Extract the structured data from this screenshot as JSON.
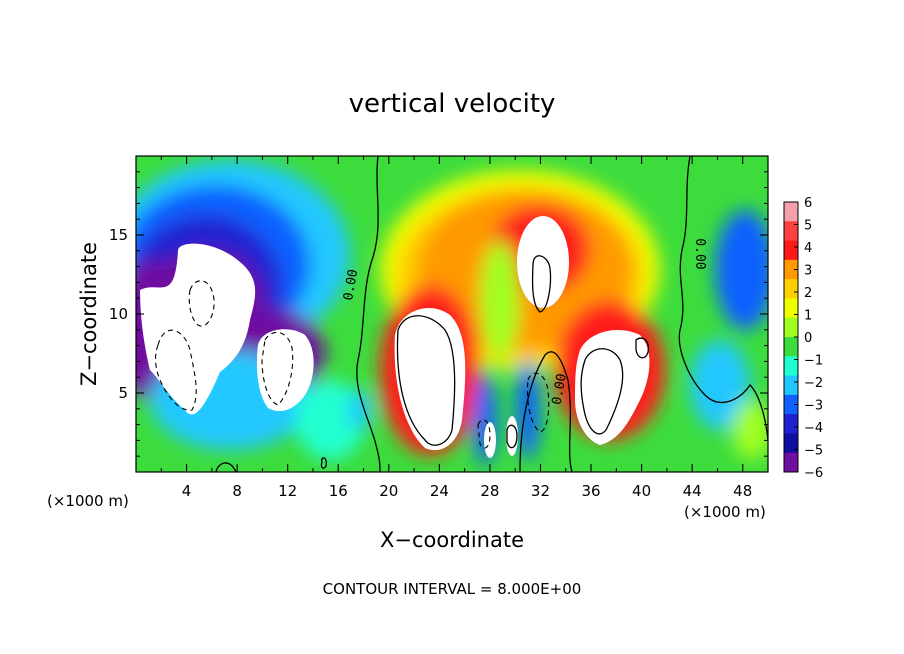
{
  "chart_data": {
    "type": "heatmap",
    "title": "vertical velocity",
    "xlabel": "X−coordinate",
    "ylabel": "Z−coordinate",
    "x_unit": "(×1000 m)",
    "xlim": [
      0,
      50
    ],
    "ylim": [
      0,
      20
    ],
    "xticks": [
      4,
      8,
      12,
      16,
      20,
      24,
      28,
      32,
      36,
      40,
      44,
      48
    ],
    "yticks": [
      5,
      10,
      15
    ],
    "colorbar": {
      "ticks": [
        6,
        5,
        4,
        3,
        2,
        1,
        0,
        -1,
        -2,
        -3,
        -4,
        -5,
        -6
      ],
      "tick_labels": [
        "6",
        "5",
        "4",
        "3",
        "2",
        "1",
        "0",
        "−1",
        "−2",
        "−3",
        "−4",
        "−5",
        "−6"
      ],
      "range": [
        -6,
        6
      ],
      "colors": [
        "#f4a0a8",
        "#ff4040",
        "#ff1a1a",
        "#ff9a00",
        "#ffd000",
        "#f0ff00",
        "#a0ff20",
        "#3ddc3d",
        "#20ffd0",
        "#20c8ff",
        "#1060ff",
        "#2020d0",
        "#1010a0",
        "#7010a0"
      ]
    },
    "contour_labels": [
      {
        "text": "0.00",
        "x": 17.3,
        "z": 11.8,
        "rotation": -80
      },
      {
        "text": "0.00",
        "x": 44.3,
        "z": 13.8,
        "rotation": 90
      },
      {
        "text": "0.00",
        "x": 33.8,
        "z": 5.2,
        "rotation": -80
      }
    ],
    "features": [
      {
        "kind": "updraft-core",
        "x": 23.5,
        "z": 7.5,
        "w": 5.8
      },
      {
        "kind": "updraft-core",
        "x": 32.2,
        "z": 13.3,
        "w": 7.5
      },
      {
        "kind": "updraft-core",
        "x": 37.5,
        "z": 6.5,
        "w": 6.5
      },
      {
        "kind": "downdraft-core",
        "x": 4.5,
        "z": 7.5,
        "w": -7.0
      },
      {
        "kind": "downdraft-core",
        "x": 10.5,
        "z": 7.0,
        "w": -6.8
      },
      {
        "kind": "downdraft",
        "x": 29.5,
        "z": 3.0,
        "w": -5.5
      },
      {
        "kind": "downdraft",
        "x": 31.2,
        "z": 3.5,
        "w": -5.0
      }
    ]
  },
  "footer": {
    "contour_interval": "CONTOUR INTERVAL =  8.000E+00"
  }
}
